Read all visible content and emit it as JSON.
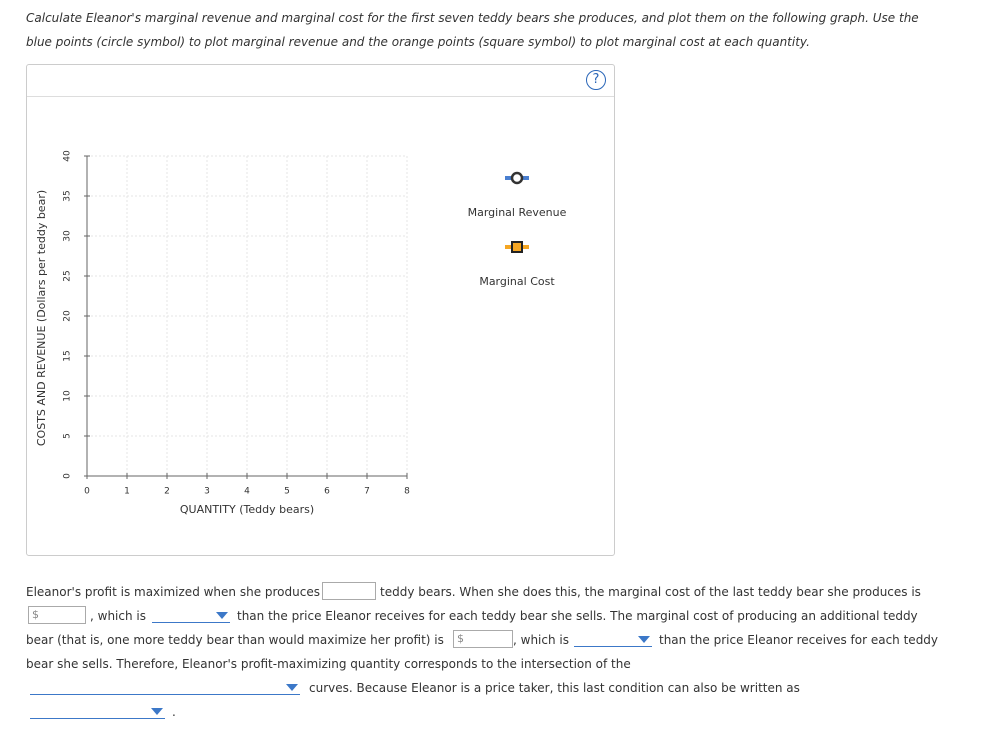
{
  "instructions": "Calculate Eleanor's marginal revenue and marginal cost for the first seven teddy bears she produces, and plot them on the following graph. Use the blue points (circle symbol) to plot marginal revenue and the orange points (square symbol) to plot marginal cost at each quantity.",
  "help": "?",
  "graph": {
    "x_label": "QUANTITY (Teddy bears)",
    "y_label": "COSTS AND REVENUE (Dollars per teddy bear)",
    "xlim": [
      0,
      8
    ],
    "xticks": [
      0,
      1,
      2,
      3,
      4,
      5,
      6,
      7,
      8
    ],
    "ylim": [
      0,
      40
    ],
    "yticks": [
      0,
      5,
      10,
      15,
      20,
      25,
      30,
      35,
      40
    ],
    "grid": true,
    "legend": [
      {
        "name": "Marginal Revenue",
        "color": "#4a7fd0",
        "marker": "circle"
      },
      {
        "name": "Marginal Cost",
        "color": "#f5a623",
        "marker": "square"
      }
    ]
  },
  "question": {
    "currency": "$",
    "texts": [
      "Eleanor's profit is maximized when she produces",
      "teddy bears. When she does this, the marginal cost of the last teddy bear she produces is",
      ", which is",
      "than the price Eleanor receives for each teddy bear she sells. The marginal cost of producing an additional teddy",
      "bear (that is, one more teddy bear than would maximize her profit) is",
      ", which is",
      "than the price Eleanor receives for each teddy",
      "bear she sells. Therefore, Eleanor's profit-maximizing quantity corresponds to the intersection of the",
      "curves. Because Eleanor is a price taker, this last condition can also be written as",
      "."
    ]
  }
}
